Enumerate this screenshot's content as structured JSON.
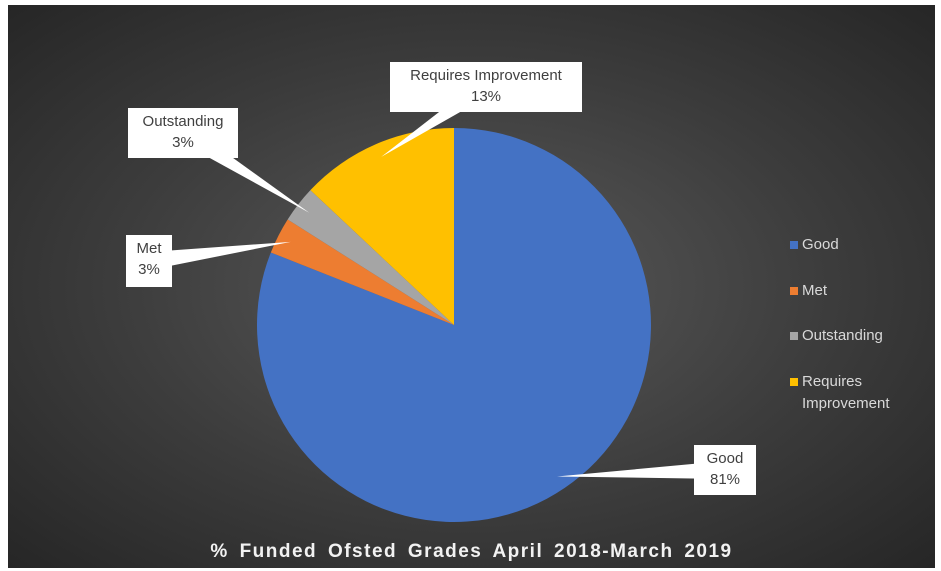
{
  "chart_data": {
    "type": "pie",
    "title": "% Funded Ofsted Grades April 2018-March 2019",
    "categories": [
      "Good",
      "Met",
      "Outstanding",
      "Requires Improvement"
    ],
    "values": [
      81,
      3,
      3,
      13
    ],
    "value_labels": [
      "81%",
      "3%",
      "3%",
      "13%"
    ],
    "colors": [
      "#4472c4",
      "#ed7d31",
      "#a5a5a5",
      "#ffc000"
    ],
    "legend": "right"
  }
}
